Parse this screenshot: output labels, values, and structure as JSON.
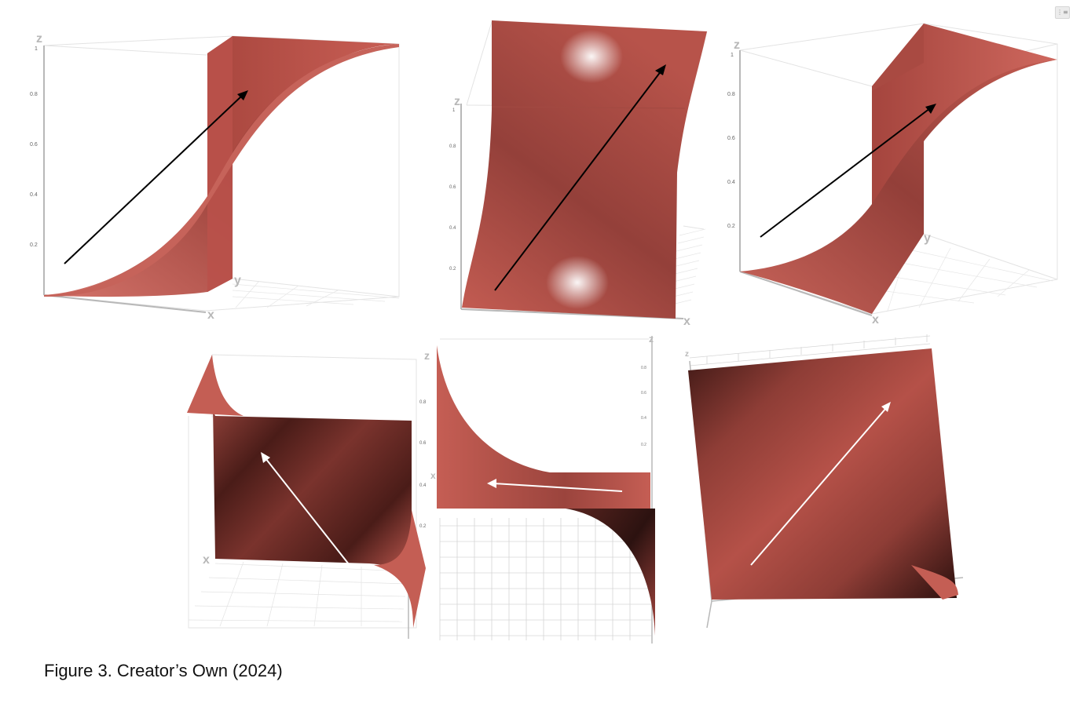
{
  "caption": "Figure 3. Creator’s Own (2024)",
  "corner_badge": "⋮≡",
  "colors": {
    "surface": "#c0574d",
    "surface_dark": "#2a1210",
    "surface_light": "#d97a6e",
    "axis": "#b8b8b8",
    "grid": "#d9d9d9",
    "arrow_dark": "#000000",
    "arrow_light": "#ffffff"
  },
  "panels": [
    {
      "z_axis": "z",
      "x_axis": "x",
      "y_axis": "y",
      "ticks": [
        "1",
        "0.8",
        "0.6",
        "0.4",
        "0.2"
      ]
    },
    {
      "z_axis": "z",
      "x_axis": "x",
      "ticks": [
        "1",
        "0.8",
        "0.6",
        "0.4",
        "0.2"
      ]
    },
    {
      "z_axis": "z",
      "x_axis": "x",
      "y_axis": "y",
      "ticks": [
        "1",
        "0.8",
        "0.6",
        "0.4",
        "0.2"
      ]
    },
    {
      "z_axis": "z",
      "x_axis": "x",
      "ticks": [
        "0.8",
        "0.6",
        "0.4",
        "0.2"
      ]
    },
    {
      "z_axis": "z",
      "x_axis": "x",
      "ticks": [
        "0.8",
        "0.6",
        "0.4",
        "0.2"
      ]
    },
    {
      "z_axis": "z"
    }
  ]
}
